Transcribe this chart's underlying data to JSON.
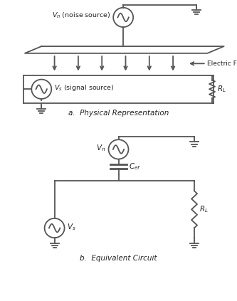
{
  "bg_color": "#ffffff",
  "line_color": "#555555",
  "text_color": "#222222",
  "title_a": "a.  Physical Representation",
  "title_b": "b.  Equivalent Circuit",
  "fig_width": 3.33,
  "fig_height": 4.23,
  "dpi": 100
}
